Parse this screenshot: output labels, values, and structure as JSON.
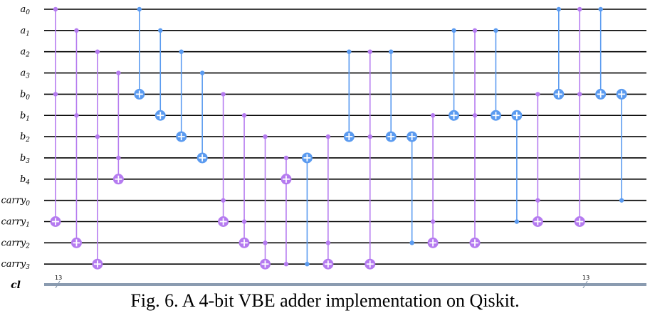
{
  "figure": {
    "caption": "Fig. 6. A 4-bit VBE adder implementation on Qiskit."
  },
  "colors": {
    "toffoli": "#b57bf0",
    "cnot": "#5b9bf0",
    "wire": "#000000",
    "classical_wire": "#8a9bb0"
  },
  "qubits": [
    {
      "base": "a",
      "sub": "0"
    },
    {
      "base": "a",
      "sub": "1"
    },
    {
      "base": "a",
      "sub": "2"
    },
    {
      "base": "a",
      "sub": "3"
    },
    {
      "base": "b",
      "sub": "0"
    },
    {
      "base": "b",
      "sub": "1"
    },
    {
      "base": "b",
      "sub": "2"
    },
    {
      "base": "b",
      "sub": "3"
    },
    {
      "base": "b",
      "sub": "4"
    },
    {
      "base": "carry",
      "sub": "0"
    },
    {
      "base": "carry",
      "sub": "1"
    },
    {
      "base": "carry",
      "sub": "2"
    },
    {
      "base": "carry",
      "sub": "3"
    }
  ],
  "classical_register": {
    "label": "cl",
    "size": "13"
  },
  "gates": [
    {
      "type": "toffoli",
      "controls": [
        0,
        4
      ],
      "target": 10
    },
    {
      "type": "toffoli",
      "controls": [
        1,
        5
      ],
      "target": 11
    },
    {
      "type": "toffoli",
      "controls": [
        2,
        6
      ],
      "target": 12
    },
    {
      "type": "toffoli",
      "controls": [
        3,
        7
      ],
      "target": 8
    },
    {
      "type": "cnot",
      "controls": [
        0
      ],
      "target": 4
    },
    {
      "type": "cnot",
      "controls": [
        1
      ],
      "target": 5
    },
    {
      "type": "cnot",
      "controls": [
        2
      ],
      "target": 6
    },
    {
      "type": "cnot",
      "controls": [
        3
      ],
      "target": 7
    },
    {
      "type": "toffoli",
      "controls": [
        4,
        9
      ],
      "target": 10
    },
    {
      "type": "toffoli",
      "controls": [
        5,
        10
      ],
      "target": 11
    },
    {
      "type": "toffoli",
      "controls": [
        6,
        11
      ],
      "target": 12
    },
    {
      "type": "toffoli",
      "controls": [
        7,
        12
      ],
      "target": 8
    },
    {
      "type": "cnot",
      "controls": [
        12
      ],
      "target": 7
    },
    {
      "type": "toffoli",
      "controls": [
        6,
        11
      ],
      "target": 12
    },
    {
      "type": "cnot",
      "controls": [
        2
      ],
      "target": 6
    },
    {
      "type": "toffoli",
      "controls": [
        2,
        6
      ],
      "target": 12
    },
    {
      "type": "cnot",
      "controls": [
        2
      ],
      "target": 6
    },
    {
      "type": "cnot",
      "controls": [
        11
      ],
      "target": 6
    },
    {
      "type": "toffoli",
      "controls": [
        5,
        10
      ],
      "target": 11
    },
    {
      "type": "cnot",
      "controls": [
        1
      ],
      "target": 5
    },
    {
      "type": "toffoli",
      "controls": [
        1,
        5
      ],
      "target": 11
    },
    {
      "type": "cnot",
      "controls": [
        1
      ],
      "target": 5
    },
    {
      "type": "cnot",
      "controls": [
        10
      ],
      "target": 5
    },
    {
      "type": "toffoli",
      "controls": [
        4,
        9
      ],
      "target": 10
    },
    {
      "type": "cnot",
      "controls": [
        0
      ],
      "target": 4
    },
    {
      "type": "toffoli",
      "controls": [
        0,
        4
      ],
      "target": 10
    },
    {
      "type": "cnot",
      "controls": [
        0
      ],
      "target": 4
    },
    {
      "type": "cnot",
      "controls": [
        9
      ],
      "target": 4
    }
  ]
}
